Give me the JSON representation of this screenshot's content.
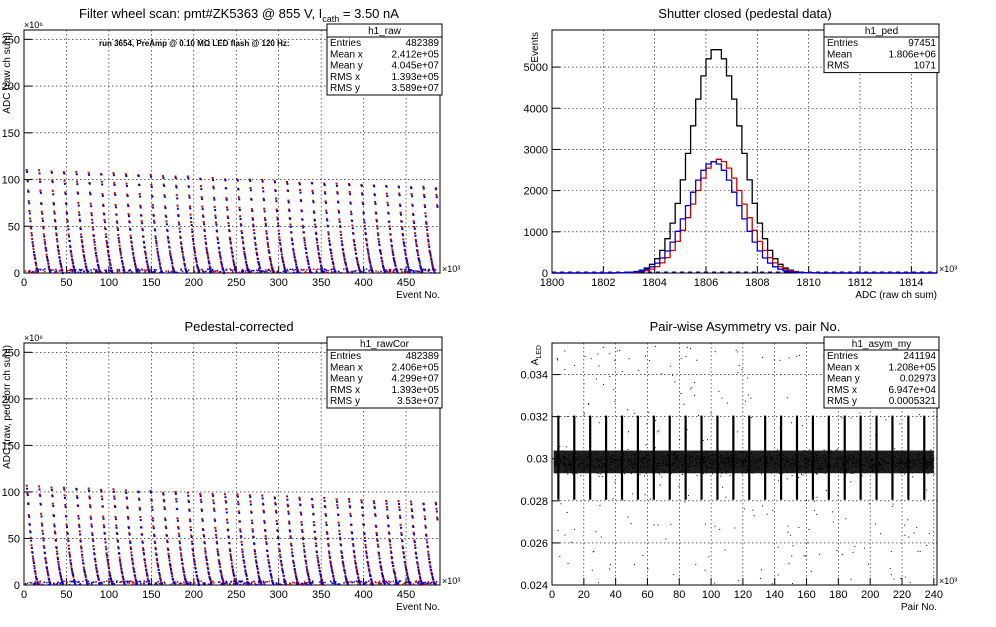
{
  "chart_data": [
    {
      "type": "scatter",
      "title": "Filter wheel scan: pmt#ZK5363 @  855 V, I",
      "title_sub": "cath",
      "title_tail": " = 3.50 nA",
      "annotation": "run 3654, PreAmp @ 0.10 MΩ LED flash @  120 Hz:",
      "xlabel": "Event No.",
      "ylabel": "ADC (raw ch sum)",
      "x_exponent": "×10³",
      "y_exponent": "×10⁶",
      "xlim": [
        0,
        490
      ],
      "ylim": [
        0,
        260
      ],
      "x_ticks": [
        "0",
        "50",
        "100",
        "150",
        "200",
        "250",
        "300",
        "350",
        "400",
        "450"
      ],
      "y_ticks": [
        "0",
        "50",
        "100",
        "150",
        "200",
        "250"
      ],
      "grid": true,
      "stats": {
        "name": "h1_raw",
        "rows": [
          [
            "Entries",
            "482389"
          ],
          [
            "Mean x",
            "2.412e+05"
          ],
          [
            "Mean y",
            "4.045e+07"
          ],
          [
            "RMS x",
            "1.393e+05"
          ],
          [
            "RMS y",
            "3.589e+07"
          ]
        ]
      },
      "series": [
        {
          "color": "#cc0000",
          "step_levels": [
            110,
            100,
            88,
            76,
            66,
            58,
            50,
            42,
            36,
            30,
            25,
            20,
            16,
            12,
            8,
            5,
            2
          ],
          "period": 14.6
        },
        {
          "color": "#0000cc",
          "step_levels": [
            108,
            98,
            86,
            74,
            64,
            56,
            48,
            40,
            34,
            28,
            23,
            18,
            14,
            10,
            6,
            3,
            1
          ],
          "period": 14.6
        }
      ]
    },
    {
      "type": "step",
      "title": "Shutter closed (pedestal data)",
      "xlabel": "ADC (raw ch sum)",
      "ylabel": "Events",
      "x_exponent": "×10³",
      "xlim": [
        1800,
        1815
      ],
      "ylim": [
        0,
        5900
      ],
      "x_ticks": [
        "1800",
        "1802",
        "1804",
        "1806",
        "1808",
        "1810",
        "1812",
        "1814"
      ],
      "y_ticks": [
        "0",
        "1000",
        "2000",
        "3000",
        "4000",
        "5000"
      ],
      "grid": true,
      "stats": {
        "name": "h1_ped",
        "rows": [
          [
            "Entries",
            "97451"
          ],
          [
            "Mean",
            "1.806e+06"
          ],
          [
            "RMS",
            "1071"
          ]
        ]
      },
      "series": [
        {
          "color": "#000000",
          "mean": 1806.4,
          "sigma": 0.98,
          "peak": 5450
        },
        {
          "color": "#cc0000",
          "mean": 1806.5,
          "sigma": 1.0,
          "peak": 2760
        },
        {
          "color": "#0000cc",
          "mean": 1806.3,
          "sigma": 1.0,
          "peak": 2700
        }
      ]
    },
    {
      "type": "scatter",
      "title": "Pedestal-corrected",
      "xlabel": "Event No.",
      "ylabel": "ADC (raw, ped-corr ch sum)",
      "x_exponent": "×10³",
      "y_exponent": "×10⁶",
      "xlim": [
        0,
        490
      ],
      "ylim": [
        0,
        260
      ],
      "x_ticks": [
        "0",
        "50",
        "100",
        "150",
        "200",
        "250",
        "300",
        "350",
        "400",
        "450"
      ],
      "y_ticks": [
        "0",
        "50",
        "100",
        "150",
        "200",
        "250"
      ],
      "grid": true,
      "stats": {
        "name": "h1_rawCor",
        "rows": [
          [
            "Entries",
            "482389"
          ],
          [
            "Mean x",
            "2.406e+05"
          ],
          [
            "Mean y",
            "4.299e+07"
          ],
          [
            "RMS x",
            "1.393e+05"
          ],
          [
            "RMS y",
            "3.53e+07"
          ]
        ]
      },
      "series": [
        {
          "color": "#cc0000",
          "step_levels": [
            106,
            98,
            88,
            76,
            66,
            58,
            50,
            42,
            36,
            30,
            25,
            20,
            16,
            12,
            8,
            5,
            2
          ],
          "period": 14.6
        },
        {
          "color": "#0000cc",
          "step_levels": [
            104,
            96,
            86,
            74,
            64,
            56,
            48,
            40,
            34,
            28,
            23,
            18,
            14,
            10,
            6,
            3,
            1
          ],
          "period": 14.6
        }
      ]
    },
    {
      "type": "scatter",
      "title": "Pair-wise Asymmetry vs. pair No.",
      "xlabel": "Pair No.",
      "ylabel": "A",
      "ylabel_sub": "LED",
      "x_exponent": "×10³",
      "xlim": [
        0,
        242
      ],
      "ylim": [
        0.024,
        0.0355
      ],
      "x_ticks": [
        "0",
        "20",
        "40",
        "60",
        "80",
        "100",
        "120",
        "140",
        "160",
        "180",
        "200",
        "220",
        "240"
      ],
      "y_ticks": [
        "0.024",
        "0.026",
        "0.028",
        "0.03",
        "0.032",
        "0.034"
      ],
      "grid": true,
      "stats": {
        "name": "h1_asym_my",
        "rows": [
          [
            "Entries",
            "241194"
          ],
          [
            "Mean x",
            "1.208e+05"
          ],
          [
            "Mean y",
            "0.02973"
          ],
          [
            "RMS x",
            "6.947e+04"
          ],
          [
            "RMS y",
            "0.0005321"
          ]
        ]
      },
      "series": [
        {
          "color": "#000000",
          "center": 0.02985,
          "band": 0.0006,
          "spike_period": 10.0
        }
      ]
    }
  ]
}
